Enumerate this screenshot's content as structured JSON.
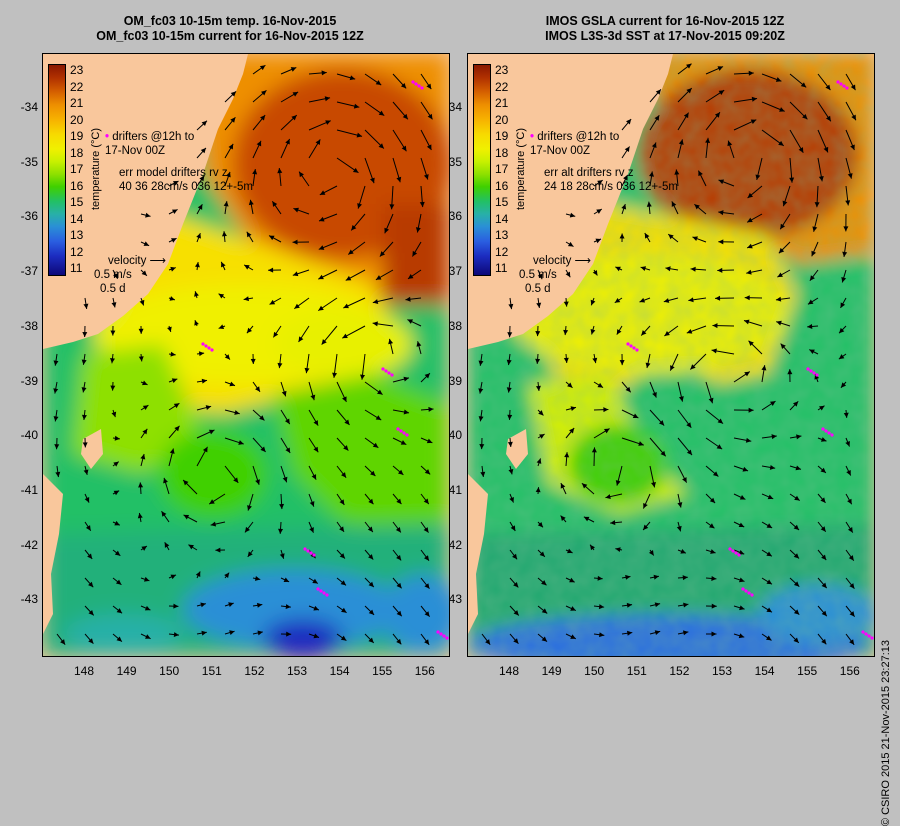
{
  "left_panel": {
    "title_line1": "OM_fc03 10-15m temp. 16-Nov-2015",
    "title_line2": "OM_fc03 10-15m current for 16-Nov-2015 12Z",
    "legend": {
      "drifters": "drifters @12h to",
      "drifters2": "17-Nov 00Z",
      "err": "err model drifters rv z",
      "err2": "40 36 28cm/s 036 12+-5m",
      "velocity": "velocity",
      "speed": "0.5 m/s",
      "duration": "0.5 d"
    }
  },
  "right_panel": {
    "title_line1": "IMOS GSLA current for 16-Nov-2015 12Z",
    "title_line2": "IMOS L3S-3d SST at 17-Nov-2015 09:20Z",
    "legend": {
      "drifters": "drifters @12h to",
      "drifters2": "17-Nov 00Z",
      "err": "err alt drifters rv z",
      "err2": "24 18 28cm/s 036 12+-5m",
      "velocity": "velocity",
      "speed": "0.5 m/s",
      "duration": "0.5 d"
    }
  },
  "colorbar": {
    "label": "temperature (°C)",
    "ticks": [
      "23",
      "22",
      "21",
      "20",
      "19",
      "18",
      "17",
      "16",
      "15",
      "14",
      "13",
      "12",
      "11"
    ]
  },
  "lat_labels": [
    "-34",
    "-35",
    "-36",
    "-37",
    "-38",
    "-39",
    "-40",
    "-41",
    "-42",
    "-43"
  ],
  "lon_labels": [
    "148",
    "149",
    "150",
    "151",
    "152",
    "153",
    "154",
    "155",
    "156"
  ],
  "credit": "© CSIRO 2015   21-Nov-2015 23:27:13"
}
